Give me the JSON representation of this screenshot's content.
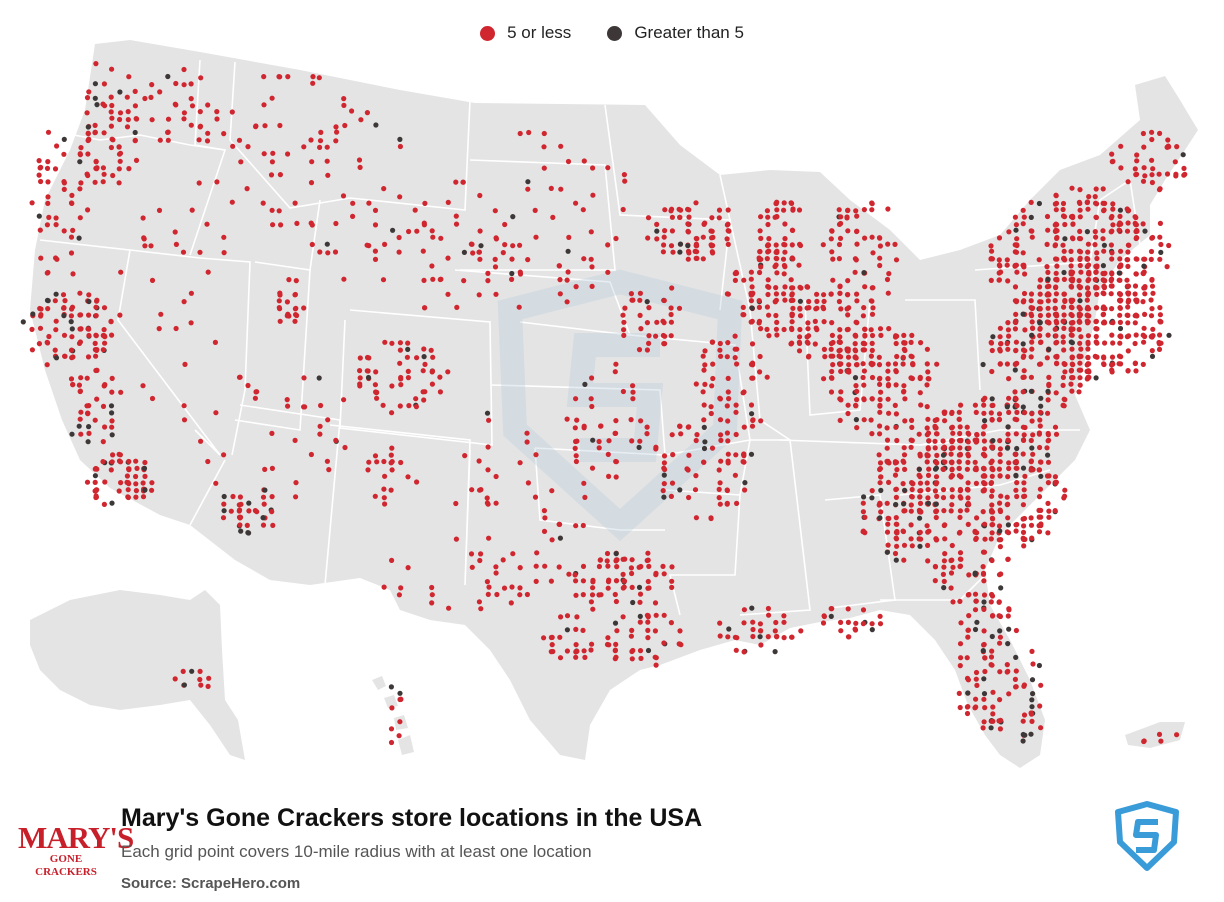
{
  "legend": {
    "items": [
      {
        "label": "5 or less",
        "color": "#d0262f"
      },
      {
        "label": "Greater than 5",
        "color": "#3d3837"
      }
    ]
  },
  "footer": {
    "title": "Mary's Gone Crackers store locations in the USA",
    "subtitle": "Each grid point covers 10-mile radius with at least one location",
    "source": "Source: ScrapeHero.com"
  },
  "brand": {
    "line1": "MARY'S",
    "line2": "GONE CRACKERS"
  },
  "colors": {
    "land": "#e4e4e4",
    "border": "#ffffff",
    "low": "#d0262f",
    "high": "#3d3837",
    "watermark": "#b9cddd",
    "scrapehero": "#3a9bd9"
  },
  "icons": [
    "scrapehero-shield-icon",
    "marys-gone-crackers-logo"
  ]
}
